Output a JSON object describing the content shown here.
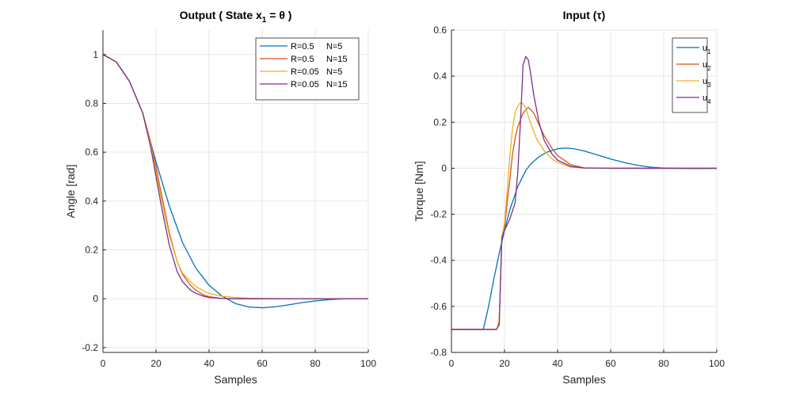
{
  "chart_data": [
    {
      "type": "line",
      "title": "Output ( State x1 = θ )",
      "title_parts": {
        "main": "Output ( State x",
        "sub": "1",
        "rest": " = θ )"
      },
      "xlabel": "Samples",
      "ylabel": "Angle [rad]",
      "xlim": [
        0,
        100
      ],
      "ylim": [
        -0.22,
        1.1
      ],
      "xticks": [
        0,
        20,
        40,
        60,
        80,
        100
      ],
      "yticks": [
        -0.2,
        0,
        0.2,
        0.4,
        0.6,
        0.8,
        1
      ],
      "grid": true,
      "legend_position": "top-right",
      "series": [
        {
          "name": "R=0.5     N=5",
          "color": "#0072BD",
          "x": [
            0,
            5,
            10,
            15,
            20,
            25,
            30,
            35,
            40,
            45,
            50,
            55,
            60,
            65,
            70,
            75,
            80,
            85,
            90,
            95,
            100
          ],
          "y": [
            1.0,
            0.97,
            0.89,
            0.76,
            0.56,
            0.38,
            0.23,
            0.125,
            0.055,
            0.01,
            -0.02,
            -0.034,
            -0.037,
            -0.033,
            -0.025,
            -0.016,
            -0.009,
            -0.004,
            -0.001,
            0.0,
            0.0
          ]
        },
        {
          "name": "R=0.5     N=15",
          "color": "#D95319",
          "x": [
            0,
            5,
            10,
            15,
            18,
            20,
            22,
            25,
            28,
            30,
            33,
            35,
            38,
            40,
            45,
            50,
            55,
            60,
            70,
            80,
            90,
            100
          ],
          "y": [
            1.0,
            0.97,
            0.89,
            0.76,
            0.64,
            0.54,
            0.43,
            0.27,
            0.15,
            0.1,
            0.055,
            0.035,
            0.015,
            0.008,
            0.001,
            0.0,
            0.0,
            0.0,
            0.0,
            0.0,
            0.0,
            0.0
          ]
        },
        {
          "name": "R=0.05   N=5",
          "color": "#EDB120",
          "x": [
            0,
            5,
            10,
            15,
            18,
            20,
            22,
            25,
            28,
            30,
            33,
            35,
            38,
            40,
            45,
            50,
            55,
            60,
            70,
            80,
            90,
            100
          ],
          "y": [
            1.0,
            0.97,
            0.89,
            0.76,
            0.63,
            0.52,
            0.41,
            0.26,
            0.15,
            0.105,
            0.07,
            0.05,
            0.032,
            0.022,
            0.01,
            0.005,
            0.002,
            0.001,
            0.0,
            0.0,
            0.0,
            0.0
          ]
        },
        {
          "name": "R=0.05   N=15",
          "color": "#7E2F8E",
          "x": [
            0,
            5,
            10,
            15,
            18,
            20,
            22,
            25,
            28,
            30,
            33,
            35,
            38,
            40,
            45,
            50,
            55,
            60,
            70,
            80,
            90,
            100
          ],
          "y": [
            1.0,
            0.97,
            0.89,
            0.76,
            0.62,
            0.5,
            0.38,
            0.22,
            0.11,
            0.07,
            0.035,
            0.022,
            0.01,
            0.005,
            0.001,
            0.0,
            0.0,
            0.0,
            0.0,
            0.0,
            0.0,
            0.0
          ]
        }
      ]
    },
    {
      "type": "line",
      "title": "Input (τ)",
      "xlabel": "Samples",
      "ylabel": "Torque [Nm]",
      "xlim": [
        0,
        100
      ],
      "ylim": [
        -0.8,
        0.6
      ],
      "xticks": [
        0,
        20,
        40,
        60,
        80,
        100
      ],
      "yticks": [
        -0.8,
        -0.6,
        -0.4,
        -0.2,
        0,
        0.2,
        0.4,
        0.6
      ],
      "grid": true,
      "legend_position": "top-right",
      "series": [
        {
          "name": "u1",
          "name_parts": {
            "main": "u",
            "sub": "1"
          },
          "color": "#0072BD",
          "x": [
            0,
            5,
            10,
            12,
            14,
            16,
            18,
            20,
            22,
            25,
            28,
            30,
            33,
            36,
            40,
            43,
            46,
            50,
            55,
            60,
            65,
            70,
            75,
            80,
            85,
            90,
            95,
            100
          ],
          "y": [
            -0.7,
            -0.7,
            -0.7,
            -0.7,
            -0.6,
            -0.48,
            -0.37,
            -0.27,
            -0.18,
            -0.08,
            -0.01,
            0.02,
            0.05,
            0.07,
            0.085,
            0.088,
            0.085,
            0.075,
            0.058,
            0.04,
            0.025,
            0.013,
            0.005,
            0.001,
            0.0,
            -0.001,
            -0.001,
            0.0
          ]
        },
        {
          "name": "u2",
          "name_parts": {
            "main": "u",
            "sub": "2"
          },
          "color": "#D95319",
          "x": [
            0,
            5,
            10,
            15,
            17,
            18,
            19,
            20,
            21,
            22,
            23,
            24,
            25,
            27,
            29,
            31,
            33,
            35,
            38,
            40,
            45,
            50,
            60,
            70,
            80,
            90,
            100
          ],
          "y": [
            -0.7,
            -0.7,
            -0.7,
            -0.7,
            -0.7,
            -0.67,
            -0.3,
            -0.26,
            -0.15,
            -0.05,
            0.06,
            0.13,
            0.18,
            0.24,
            0.265,
            0.24,
            0.19,
            0.14,
            0.085,
            0.055,
            0.015,
            0.002,
            0.0,
            0.0,
            0.0,
            0.0,
            0.0
          ]
        },
        {
          "name": "u3",
          "name_parts": {
            "main": "u",
            "sub": "3"
          },
          "color": "#EDB120",
          "x": [
            0,
            5,
            10,
            15,
            17,
            18,
            19,
            20,
            21,
            22,
            23,
            24,
            25,
            26,
            27,
            28,
            30,
            32,
            35,
            38,
            40,
            45,
            50,
            60,
            70,
            80,
            90,
            100
          ],
          "y": [
            -0.7,
            -0.7,
            -0.7,
            -0.7,
            -0.7,
            -0.66,
            -0.3,
            -0.24,
            -0.1,
            0.05,
            0.17,
            0.24,
            0.27,
            0.285,
            0.28,
            0.26,
            0.19,
            0.13,
            0.075,
            0.04,
            0.025,
            0.005,
            0.001,
            0.0,
            0.0,
            0.0,
            0.0,
            0.0
          ]
        },
        {
          "name": "u4",
          "name_parts": {
            "main": "u",
            "sub": "4"
          },
          "color": "#7E2F8E",
          "x": [
            0,
            5,
            10,
            15,
            17,
            18,
            19,
            20,
            22,
            24,
            25,
            26,
            27,
            28,
            29,
            30,
            31,
            33,
            35,
            38,
            40,
            45,
            50,
            60,
            70,
            80,
            90,
            100
          ],
          "y": [
            -0.7,
            -0.7,
            -0.7,
            -0.7,
            -0.7,
            -0.68,
            -0.3,
            -0.27,
            -0.22,
            -0.15,
            -0.02,
            0.2,
            0.45,
            0.485,
            0.47,
            0.4,
            0.32,
            0.2,
            0.12,
            0.06,
            0.035,
            0.008,
            0.001,
            0.0,
            0.0,
            0.0,
            0.0,
            0.0
          ]
        }
      ]
    }
  ]
}
